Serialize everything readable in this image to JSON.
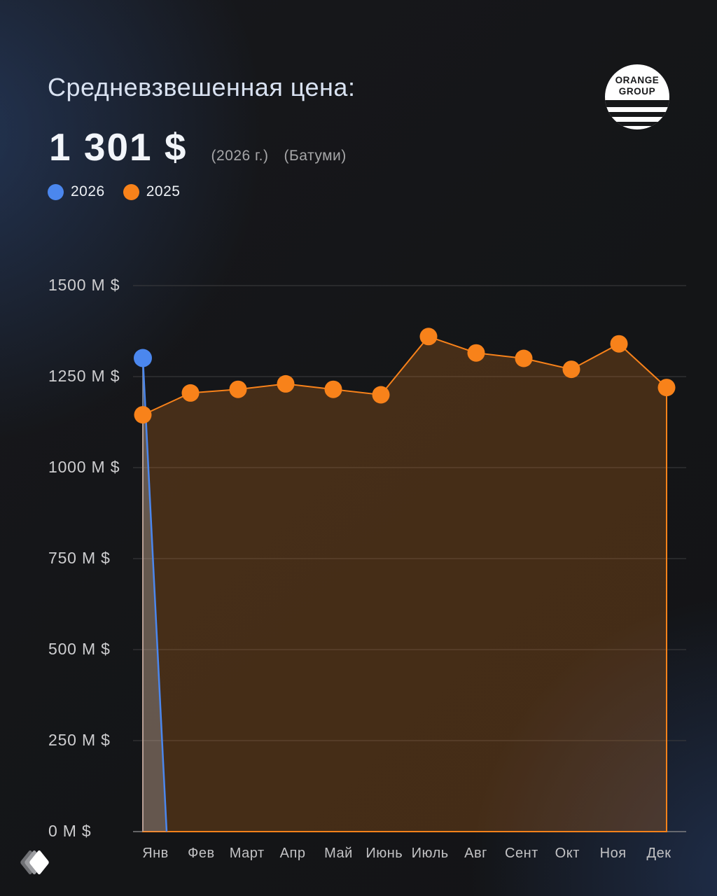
{
  "header": {
    "title": "Средневзвешенная цена:",
    "price": "1 301 $",
    "year_note": "(2026 г.)",
    "city_note": "(Батуми)"
  },
  "legend": [
    {
      "label": "2026",
      "color": "#4b87ee"
    },
    {
      "label": "2025",
      "color": "#f8821a"
    }
  ],
  "logo": {
    "line1": "ORANGE",
    "line2": "GROUP"
  },
  "chart_data": {
    "type": "line",
    "categories": [
      "Янв",
      "Фев",
      "Март",
      "Апр",
      "Май",
      "Июнь",
      "Июль",
      "Авг",
      "Сент",
      "Окт",
      "Ноя",
      "Дек"
    ],
    "series": [
      {
        "name": "2026",
        "color": "#4b87ee",
        "values": [
          1301,
          null,
          null,
          null,
          null,
          null,
          null,
          null,
          null,
          null,
          null,
          null
        ],
        "drops_to_baseline_after_first_point": true
      },
      {
        "name": "2025",
        "color": "#f8821a",
        "values": [
          1145,
          1205,
          1215,
          1230,
          1215,
          1200,
          1360,
          1315,
          1300,
          1270,
          1340,
          1220
        ],
        "area_fill": true
      }
    ],
    "ylim": [
      0,
      1500
    ],
    "yticks": [
      0,
      250,
      500,
      750,
      1000,
      1250,
      1500
    ],
    "ytick_format": "{v} M $",
    "grid": true,
    "legend_position": "top-left"
  }
}
